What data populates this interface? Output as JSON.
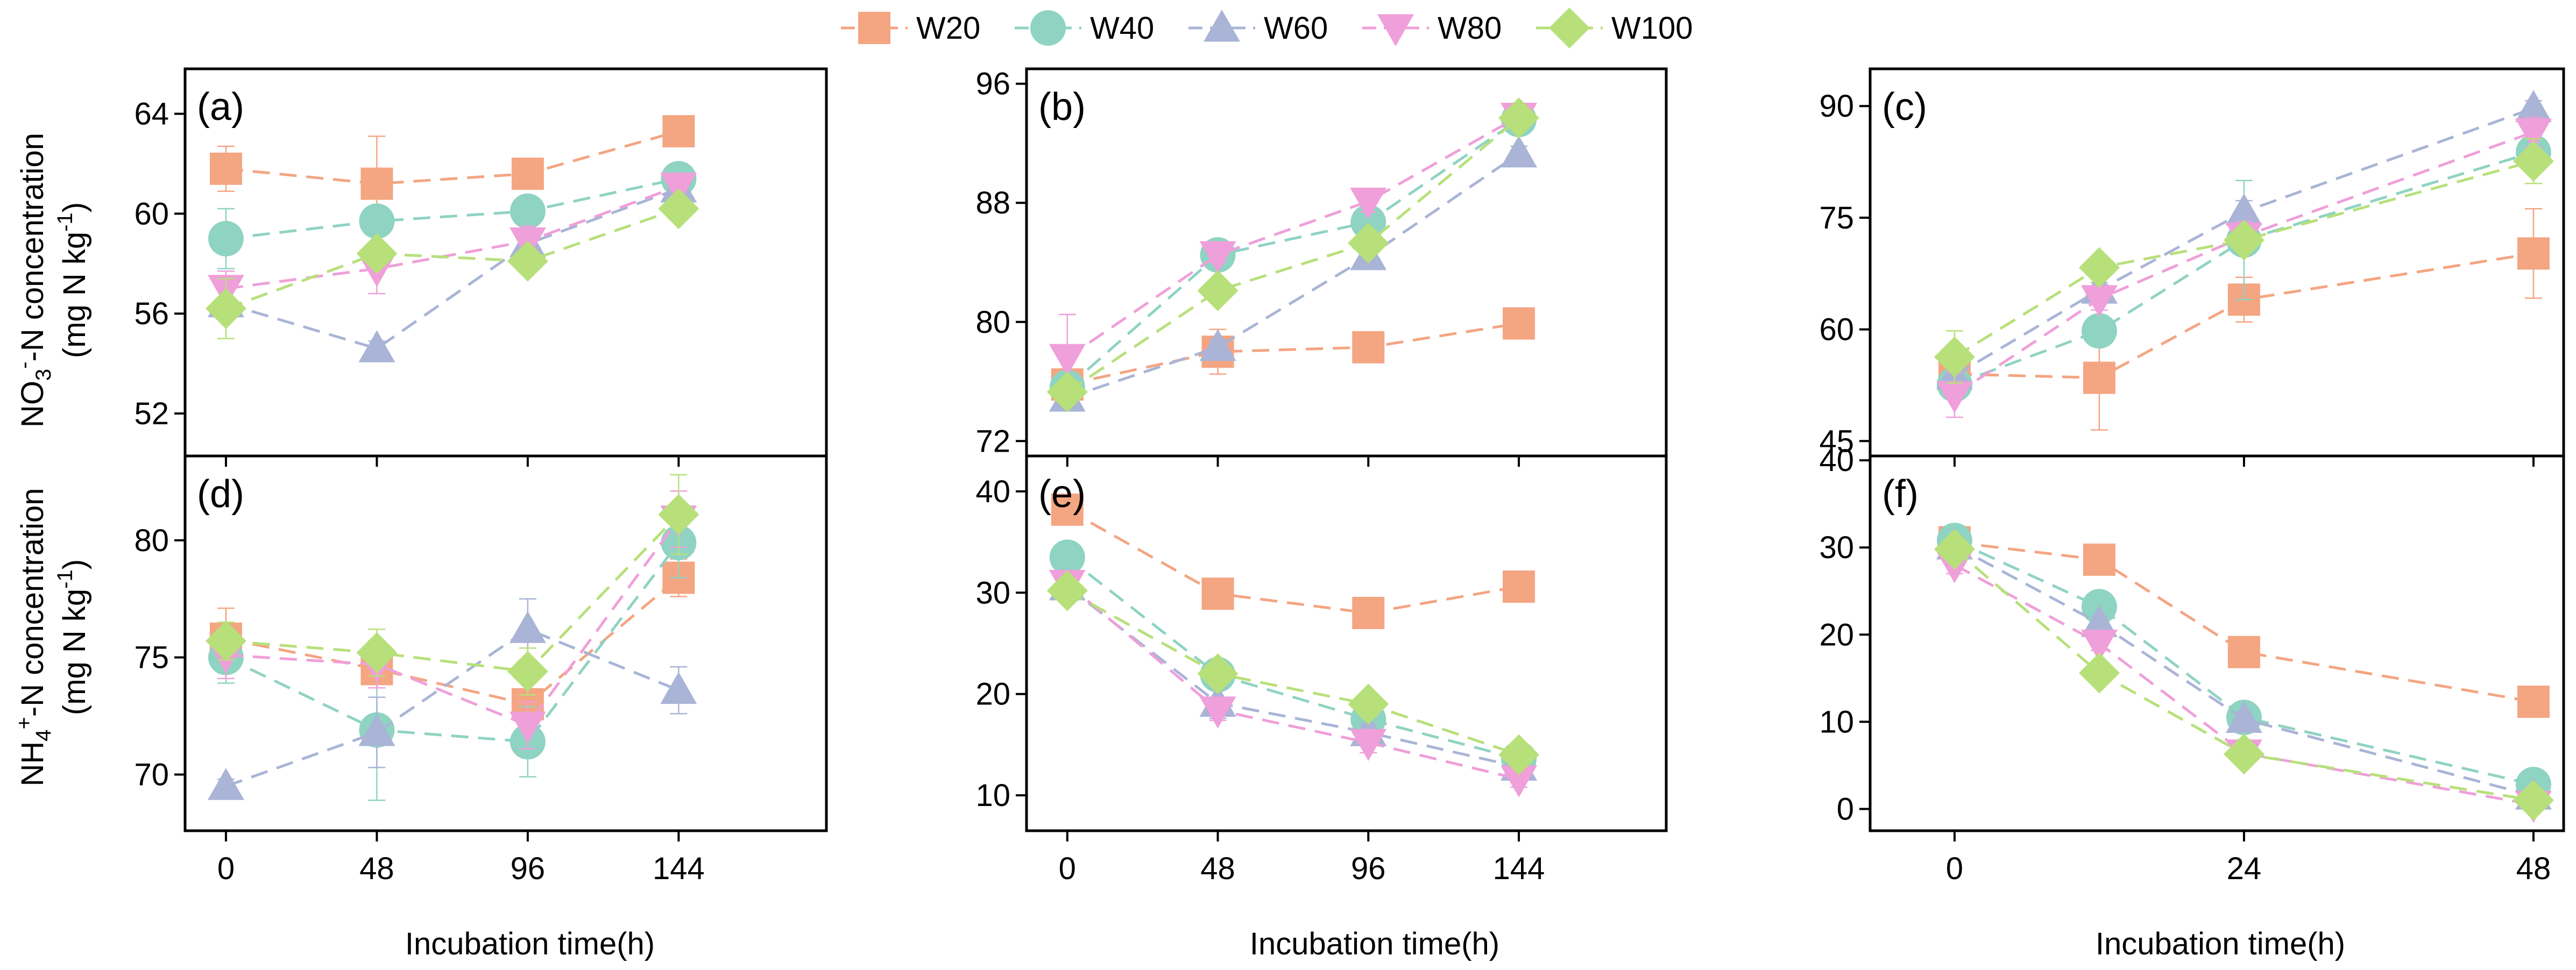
{
  "legend": {
    "position": "top-center",
    "series": [
      {
        "name": "W20",
        "color": "#f4a582",
        "marker": "square"
      },
      {
        "name": "W40",
        "color": "#8fd3c3",
        "marker": "circle"
      },
      {
        "name": "W60",
        "color": "#a9b4d6",
        "marker": "triangle-up"
      },
      {
        "name": "W80",
        "color": "#ef9fd9",
        "marker": "triangle-down"
      },
      {
        "name": "W100",
        "color": "#b7e07a",
        "marker": "diamond"
      }
    ]
  },
  "row_labels": {
    "top_line1": "NO",
    "top_sub": "3",
    "top_sup": "-",
    "top_rest": "-N concentration",
    "top_line2_pre": "(mg N kg",
    "top_line2_sup": "-1",
    "top_line2_post": ")",
    "bottom_line1": "NH",
    "bottom_sub": "4",
    "bottom_sup": "+",
    "bottom_rest": "-N concentration",
    "bottom_line2_pre": "(mg N kg",
    "bottom_line2_sup": "-1",
    "bottom_line2_post": ")"
  },
  "x_titles": [
    "Incubation time(h)",
    "Incubation time(h)",
    "Incubation time(h)"
  ],
  "chart_data": [
    {
      "type": "line",
      "panel": "(a)",
      "x": [
        0,
        48,
        96,
        144
      ],
      "xticks": [
        0,
        48,
        96,
        144
      ],
      "xlim": [
        -13,
        191
      ],
      "ylim": [
        50.3,
        65.8
      ],
      "yticks": [
        52,
        56,
        60,
        64
      ],
      "series": [
        {
          "name": "W20",
          "values": [
            61.8,
            61.2,
            61.6,
            63.3
          ],
          "errors": [
            0.9,
            1.9,
            0.5,
            0.3
          ]
        },
        {
          "name": "W40",
          "values": [
            59.0,
            59.7,
            60.1,
            61.4
          ],
          "errors": [
            1.2,
            0.3,
            0.4,
            0.3
          ]
        },
        {
          "name": "W60",
          "values": [
            56.4,
            54.6,
            58.8,
            61.0
          ],
          "errors": [
            0.5,
            0.3,
            0.5,
            0.3
          ]
        },
        {
          "name": "W80",
          "values": [
            57.0,
            57.8,
            58.9,
            61.1
          ],
          "errors": [
            0.7,
            1.0,
            0.6,
            0.4
          ]
        },
        {
          "name": "W100",
          "values": [
            56.2,
            58.4,
            58.1,
            60.2
          ],
          "errors": [
            1.2,
            0.4,
            0.4,
            0.4
          ]
        }
      ]
    },
    {
      "type": "line",
      "panel": "(b)",
      "x": [
        0,
        48,
        96,
        144
      ],
      "xticks": [
        0,
        48,
        96,
        144
      ],
      "xlim": [
        -13,
        191
      ],
      "ylim": [
        71,
        97
      ],
      "yticks": [
        72,
        80,
        88,
        96
      ],
      "series": [
        {
          "name": "W20",
          "values": [
            75.8,
            78.0,
            78.3,
            79.9
          ],
          "errors": [
            1.0,
            1.5,
            0.6,
            0.3
          ]
        },
        {
          "name": "W40",
          "values": [
            75.6,
            84.5,
            86.7,
            93.6
          ],
          "errors": [
            0.5,
            0.6,
            0.8,
            0.4
          ]
        },
        {
          "name": "W60",
          "values": [
            74.9,
            78.3,
            84.4,
            91.3
          ],
          "errors": [
            0.5,
            0.5,
            0.6,
            0.5
          ]
        },
        {
          "name": "W80",
          "values": [
            77.6,
            84.5,
            88.1,
            93.8
          ],
          "errors": [
            2.9,
            0.5,
            0.7,
            0.4
          ]
        },
        {
          "name": "W100",
          "values": [
            75.3,
            82.1,
            85.3,
            93.7
          ],
          "errors": [
            0.6,
            0.5,
            0.8,
            0.3
          ]
        }
      ]
    },
    {
      "type": "line",
      "panel": "(c)",
      "x": [
        0,
        12,
        24,
        48
      ],
      "xticks": [
        0,
        24,
        48
      ],
      "xlim": [
        -7,
        50.5
      ],
      "ylim": [
        43,
        95
      ],
      "yticks": [
        45,
        60,
        75,
        90
      ],
      "series": [
        {
          "name": "W20",
          "values": [
            54.0,
            53.5,
            64.0,
            70.2
          ],
          "errors": [
            1.0,
            7.0,
            3.0,
            6.0
          ]
        },
        {
          "name": "W40",
          "values": [
            52.6,
            59.8,
            72.0,
            83.8
          ],
          "errors": [
            1.0,
            1.0,
            8.0,
            1.0
          ]
        },
        {
          "name": "W60",
          "values": [
            53.8,
            65.3,
            75.8,
            89.7
          ],
          "errors": [
            1.0,
            1.0,
            1.5,
            1.0
          ]
        },
        {
          "name": "W80",
          "values": [
            51.2,
            64.1,
            72.5,
            86.5
          ],
          "errors": [
            3.0,
            1.5,
            2.0,
            2.0
          ]
        },
        {
          "name": "W100",
          "values": [
            56.3,
            68.3,
            72.0,
            82.6
          ],
          "errors": [
            3.5,
            1.0,
            1.0,
            3.0
          ]
        }
      ]
    },
    {
      "type": "line",
      "panel": "(d)",
      "x": [
        0,
        48,
        96,
        144
      ],
      "xticks": [
        0,
        48,
        96,
        144
      ],
      "xlim": [
        -13,
        191
      ],
      "ylim": [
        67.6,
        83.6
      ],
      "yticks": [
        70,
        75,
        80
      ],
      "series": [
        {
          "name": "W20",
          "values": [
            75.8,
            74.5,
            73.0,
            78.4
          ],
          "errors": [
            1.3,
            0.8,
            1.5,
            0.8
          ]
        },
        {
          "name": "W40",
          "values": [
            75.0,
            71.9,
            71.4,
            79.9
          ],
          "errors": [
            1.1,
            3.0,
            1.5,
            1.5
          ]
        },
        {
          "name": "W60",
          "values": [
            69.5,
            71.8,
            76.2,
            73.6
          ],
          "errors": [
            0.3,
            1.5,
            1.3,
            1.0
          ]
        },
        {
          "name": "W80",
          "values": [
            75.1,
            74.7,
            72.1,
            80.9
          ],
          "errors": [
            1.0,
            1.0,
            1.0,
            1.2
          ]
        },
        {
          "name": "W100",
          "values": [
            75.7,
            75.2,
            74.4,
            81.1
          ],
          "errors": [
            0.8,
            1.0,
            1.0,
            1.7
          ]
        }
      ]
    },
    {
      "type": "line",
      "panel": "(e)",
      "x": [
        0,
        48,
        96,
        144
      ],
      "xticks": [
        0,
        48,
        96,
        144
      ],
      "xlim": [
        -13,
        191
      ],
      "ylim": [
        6.5,
        43.5
      ],
      "yticks": [
        10,
        20,
        30,
        40
      ],
      "series": [
        {
          "name": "W20",
          "values": [
            38.2,
            29.9,
            28.0,
            30.6
          ],
          "errors": [
            0.8,
            0.5,
            0.5,
            0.5
          ]
        },
        {
          "name": "W40",
          "values": [
            33.5,
            21.9,
            17.5,
            13.6
          ],
          "errors": [
            0.5,
            0.8,
            0.8,
            0.5
          ]
        },
        {
          "name": "W60",
          "values": [
            30.6,
            19.1,
            16.2,
            12.8
          ],
          "errors": [
            0.5,
            1.5,
            0.8,
            0.5
          ]
        },
        {
          "name": "W80",
          "values": [
            30.9,
            18.4,
            15.2,
            11.6
          ],
          "errors": [
            0.5,
            1.0,
            1.0,
            0.8
          ]
        },
        {
          "name": "W100",
          "values": [
            30.2,
            22.0,
            19.0,
            14.0
          ],
          "errors": [
            0.5,
            0.8,
            0.8,
            0.8
          ]
        }
      ]
    },
    {
      "type": "line",
      "panel": "(f)",
      "x": [
        0,
        12,
        24,
        48
      ],
      "xticks": [
        0,
        24,
        48
      ],
      "xlim": [
        -7,
        50.5
      ],
      "ylim": [
        -2.5,
        40.5
      ],
      "yticks": [
        0,
        10,
        20,
        30,
        40
      ],
      "series": [
        {
          "name": "W20",
          "values": [
            30.6,
            28.6,
            18.0,
            12.3
          ],
          "errors": [
            1.0,
            0.8,
            0.8,
            0.5
          ]
        },
        {
          "name": "W40",
          "values": [
            30.8,
            23.2,
            10.5,
            2.8
          ],
          "errors": [
            1.0,
            0.8,
            0.8,
            0.5
          ]
        },
        {
          "name": "W60",
          "values": [
            30.2,
            21.3,
            10.3,
            1.5
          ],
          "errors": [
            1.0,
            0.8,
            0.8,
            0.5
          ]
        },
        {
          "name": "W80",
          "values": [
            28.0,
            19.0,
            6.4,
            0.5
          ],
          "errors": [
            1.0,
            0.8,
            0.8,
            0.5
          ]
        },
        {
          "name": "W100",
          "values": [
            29.8,
            15.6,
            6.3,
            1.0
          ],
          "errors": [
            1.0,
            0.8,
            0.8,
            0.5
          ]
        }
      ]
    }
  ]
}
